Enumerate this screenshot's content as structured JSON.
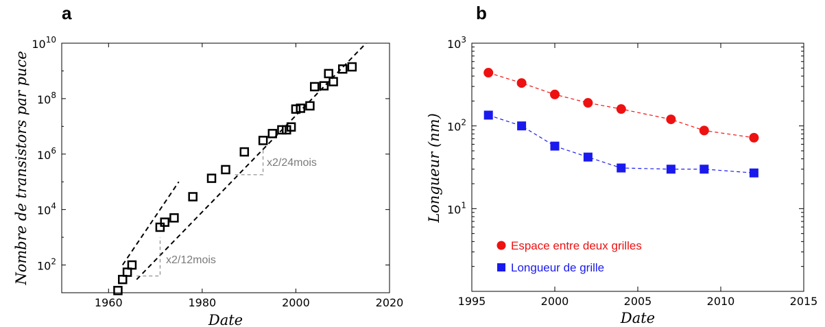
{
  "chart_data": [
    {
      "type": "scatter",
      "panel": "a",
      "xlabel": "Date",
      "ylabel": "Nombre de transistors par puce",
      "xlim": [
        1950,
        2020
      ],
      "ylim": [
        10,
        10000000000
      ],
      "yscale": "log",
      "grid": false,
      "x_ticks": [
        "1960",
        "1980",
        "2000",
        "2020"
      ],
      "y_ticks": [
        {
          "base": "10",
          "exp": "2"
        },
        {
          "base": "10",
          "exp": "4"
        },
        {
          "base": "10",
          "exp": "6"
        },
        {
          "base": "10",
          "exp": "8"
        },
        {
          "base": "10",
          "exp": "10"
        }
      ],
      "annotations": [
        "x2/24mois",
        "x2/12mois"
      ],
      "series": [
        {
          "marker": "open-square",
          "color": "#000000",
          "points": [
            [
              1962,
              12
            ],
            [
              1963,
              30
            ],
            [
              1964,
              55
            ],
            [
              1965,
              100
            ],
            [
              1971,
              2300
            ],
            [
              1972,
              3500
            ],
            [
              1974,
              5000
            ],
            [
              1978,
              29000
            ],
            [
              1982,
              134000
            ],
            [
              1985,
              275000
            ],
            [
              1989,
              1200000
            ],
            [
              1993,
              3100000
            ],
            [
              1995,
              5500000
            ],
            [
              1997,
              7500000
            ],
            [
              1998,
              7500000
            ],
            [
              1999,
              9500000
            ],
            [
              2000,
              42000000
            ],
            [
              2001,
              45000000
            ],
            [
              2003,
              55000000
            ],
            [
              2004,
              270000000
            ],
            [
              2006,
              290000000
            ],
            [
              2007,
              800000000
            ],
            [
              2008,
              410000000
            ],
            [
              2010,
              1170000000
            ],
            [
              2012,
              1400000000
            ]
          ]
        }
      ],
      "trendlines": [
        {
          "style": "dashed",
          "color": "#000000",
          "points": [
            [
              1963,
              100
            ],
            [
              1975,
              100000
            ]
          ]
        },
        {
          "style": "dashed",
          "color": "#000000",
          "points": [
            [
              1966,
              30
            ],
            [
              2015,
              10000000000
            ]
          ]
        }
      ]
    },
    {
      "type": "line",
      "panel": "b",
      "xlabel": "Date",
      "ylabel": "Longueur (nm)",
      "xlim": [
        1995,
        2015
      ],
      "ylim": [
        1,
        1000
      ],
      "yscale": "log",
      "grid": false,
      "legend_position": "lower-left",
      "x_ticks": [
        "1995",
        "2000",
        "2005",
        "2010",
        "2015"
      ],
      "y_ticks": [
        {
          "base": "10",
          "exp": "1"
        },
        {
          "base": "10",
          "exp": "2"
        },
        {
          "base": "10",
          "exp": "3"
        }
      ],
      "series": [
        {
          "name": "Espace entre deux grilles",
          "color": "#ee1111",
          "marker": "circle",
          "line": "dashed",
          "x": [
            1996,
            1998,
            2000,
            2002,
            2004,
            2007,
            2009,
            2012
          ],
          "y": [
            440,
            330,
            240,
            190,
            160,
            120,
            88,
            72
          ]
        },
        {
          "name": "Longueur de grille",
          "color": "#1a1aee",
          "marker": "square",
          "line": "dashed",
          "x": [
            1996,
            1998,
            2000,
            2002,
            2004,
            2007,
            2009,
            2012
          ],
          "y": [
            135,
            100,
            57,
            42,
            31,
            30,
            30,
            27
          ]
        }
      ]
    }
  ]
}
